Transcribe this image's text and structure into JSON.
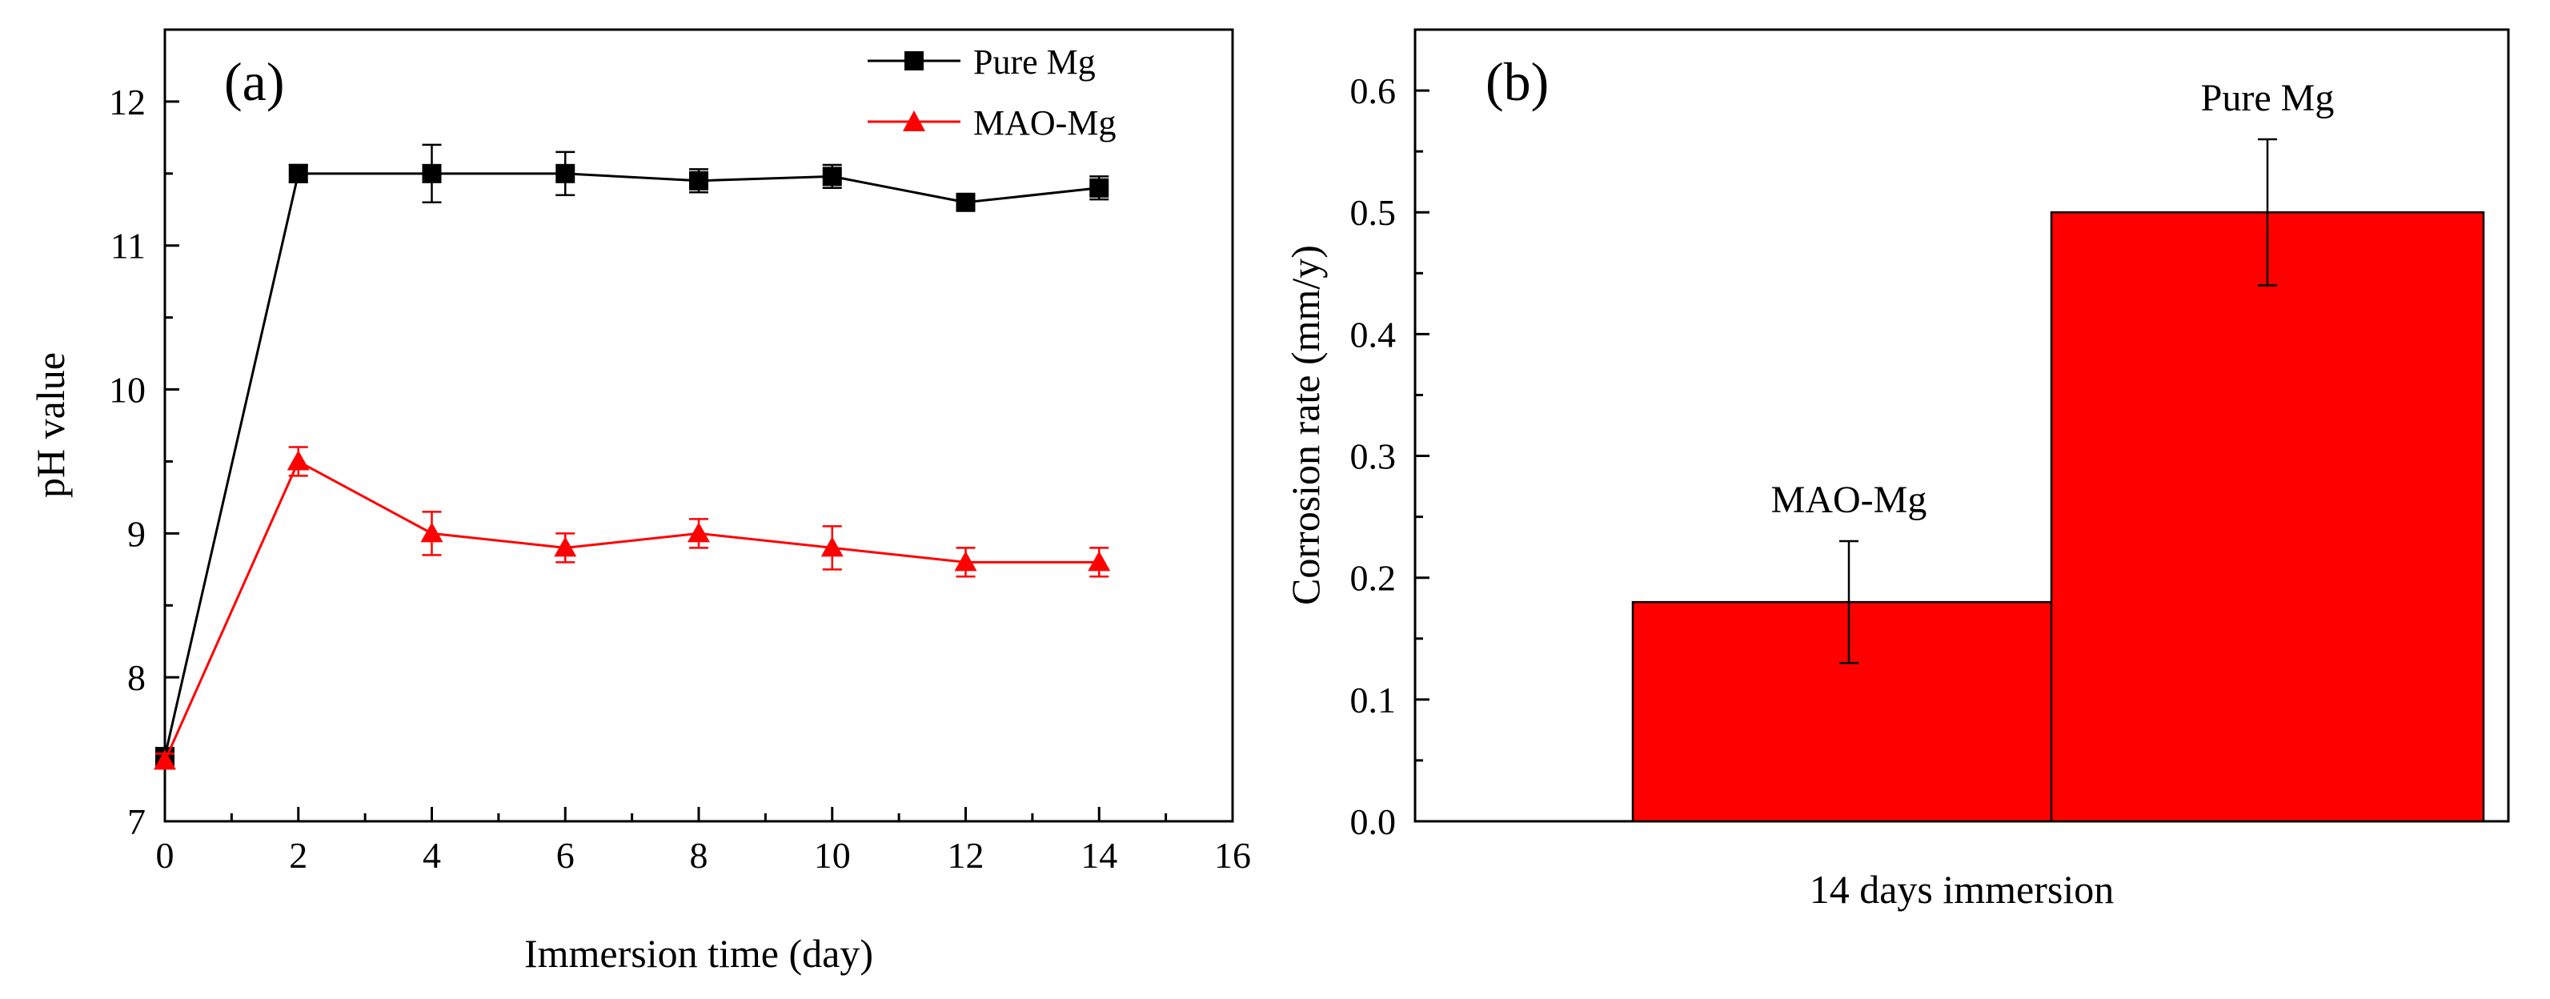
{
  "chart_data": [
    {
      "panel_label": "(a)",
      "type": "line",
      "xlabel": "Immersion time (day)",
      "ylabel": "pH value",
      "xlim": [
        0,
        16
      ],
      "ylim": [
        7,
        12.5
      ],
      "xticks": [
        "0",
        "2",
        "4",
        "6",
        "8",
        "10",
        "12",
        "14",
        "16"
      ],
      "yticks": [
        "7",
        "8",
        "9",
        "10",
        "11",
        "12"
      ],
      "legend_position": "top-right",
      "x": [
        0,
        2,
        4,
        6,
        8,
        10,
        12,
        14
      ],
      "series": [
        {
          "name": "Pure Mg",
          "color": "#000000",
          "marker": "square",
          "values": [
            7.45,
            11.5,
            11.5,
            11.5,
            11.45,
            11.48,
            11.3,
            11.4
          ],
          "errors": [
            0.05,
            0.06,
            0.2,
            0.15,
            0.08,
            0.08,
            0.05,
            0.08
          ]
        },
        {
          "name": "MAO-Mg",
          "color": "#ff0000",
          "marker": "triangle",
          "values": [
            7.42,
            9.5,
            9.0,
            8.9,
            9.0,
            8.9,
            8.8,
            8.8
          ],
          "errors": [
            0.05,
            0.1,
            0.15,
            0.1,
            0.1,
            0.15,
            0.1,
            0.1
          ]
        }
      ]
    },
    {
      "panel_label": "(b)",
      "type": "bar",
      "xlabel": "14 days immersion",
      "ylabel": "Corrosion rate (mm/y)",
      "ylim": [
        0,
        0.65
      ],
      "yticks": [
        "0.0",
        "0.1",
        "0.2",
        "0.3",
        "0.4",
        "0.5",
        "0.6"
      ],
      "categories": [
        "MAO-Mg",
        "Pure Mg"
      ],
      "values": [
        0.18,
        0.5
      ],
      "errors": [
        0.05,
        0.06
      ],
      "bar_color": "#ff0000"
    }
  ]
}
